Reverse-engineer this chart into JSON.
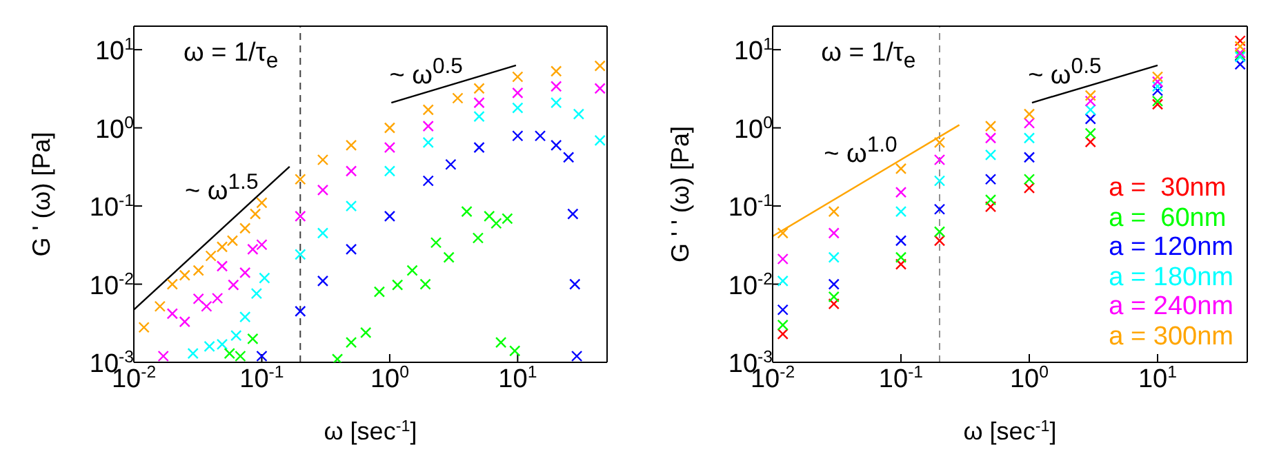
{
  "chart_data": [
    {
      "type": "scatter",
      "xlabel": "ω [sec$^{-1}$]",
      "ylabel": "G ' (ω) [Pa]",
      "log": "xy",
      "marker": "cross",
      "xlim": [
        0.01,
        50
      ],
      "ylim": [
        0.001,
        20
      ],
      "xticks": [
        {
          "value": 0.01,
          "label": "10$^{-2}$"
        },
        {
          "value": 0.1,
          "label": "10$^{-1}$"
        },
        {
          "value": 1,
          "label": "10$^{0}$"
        },
        {
          "value": 10,
          "label": "10$^{1}$"
        }
      ],
      "yticks": [
        {
          "value": 0.001,
          "label": "10$^{-3}$"
        },
        {
          "value": 0.01,
          "label": "10$^{-2}$"
        },
        {
          "value": 0.1,
          "label": "10$^{-1}$"
        },
        {
          "value": 1,
          "label": "10$^{0}$"
        },
        {
          "value": 10,
          "label": "10$^{1}$"
        }
      ],
      "ref_lines": [
        {
          "axis": "x",
          "value": 0.2,
          "color": "#404040",
          "line_style": "dashed"
        }
      ],
      "annotations": [
        "ω = 1/τ$_{e}$",
        "~ ω$^{1.5}$",
        "~ ω$^{0.5}$"
      ],
      "series": [
        {
          "color": "#ffa500",
          "x": [
            0.012,
            0.016,
            0.02,
            0.025,
            0.032,
            0.04,
            0.049,
            0.059,
            0.074,
            0.089,
            0.1,
            0.2,
            0.3,
            0.5,
            1,
            2,
            3.4,
            5,
            10,
            20,
            44
          ],
          "values": [
            0.0028,
            0.0052,
            0.01,
            0.013,
            0.015,
            0.023,
            0.03,
            0.036,
            0.052,
            0.079,
            0.11,
            0.22,
            0.39,
            0.6,
            1.0,
            1.7,
            2.4,
            3.2,
            4.5,
            5.3,
            6.2
          ]
        },
        {
          "color": "#ff00ff",
          "x": [
            0.017,
            0.02,
            0.025,
            0.032,
            0.037,
            0.045,
            0.049,
            0.06,
            0.074,
            0.085,
            0.1,
            0.2,
            0.3,
            0.5,
            1,
            2,
            5,
            10,
            20,
            44
          ],
          "values": [
            0.0012,
            0.0042,
            0.0033,
            0.0065,
            0.0052,
            0.0066,
            0.017,
            0.0098,
            0.014,
            0.028,
            0.032,
            0.074,
            0.16,
            0.28,
            0.56,
            1.05,
            2.1,
            2.8,
            3.4,
            3.2
          ]
        },
        {
          "color": "#00ffff",
          "x": [
            0.029,
            0.039,
            0.049,
            0.063,
            0.074,
            0.091,
            0.105,
            0.2,
            0.3,
            0.5,
            1,
            2,
            5,
            10,
            20,
            30,
            44
          ],
          "values": [
            0.0013,
            0.0016,
            0.0017,
            0.0022,
            0.0038,
            0.0076,
            0.012,
            0.024,
            0.045,
            0.1,
            0.28,
            0.65,
            1.4,
            1.8,
            2.1,
            1.5,
            0.69
          ]
        },
        {
          "color": "#0000ff",
          "x": [
            0.1,
            0.2,
            0.3,
            0.5,
            1,
            2,
            3,
            5,
            10,
            15,
            20,
            25,
            27,
            28,
            29
          ],
          "values": [
            0.0012,
            0.0045,
            0.011,
            0.028,
            0.074,
            0.21,
            0.34,
            0.56,
            0.79,
            0.79,
            0.6,
            0.42,
            0.079,
            0.01,
            0.0012
          ]
        },
        {
          "color": "#00ff00",
          "x": [
            0.056,
            0.068,
            0.085,
            0.39,
            0.5,
            0.65,
            0.83,
            1.15,
            1.5,
            1.9,
            2.3,
            2.9,
            4.0,
            4.9,
            6.0,
            6.8,
            7.4,
            8.3,
            9.5
          ],
          "values": [
            0.0013,
            0.0012,
            0.002,
            0.0011,
            0.0018,
            0.0024,
            0.008,
            0.0098,
            0.015,
            0.01,
            0.034,
            0.022,
            0.085,
            0.039,
            0.074,
            0.06,
            0.0018,
            0.069,
            0.0014
          ]
        },
        {
          "type": "line",
          "marker": "none",
          "color": "#000000",
          "x": [
            0.01,
            0.165
          ],
          "values": [
            0.0047,
            0.32
          ]
        },
        {
          "type": "line",
          "marker": "none",
          "color": "#000000",
          "x": [
            1.03,
            9.7
          ],
          "values": [
            2.1,
            6.3
          ]
        }
      ]
    },
    {
      "type": "scatter",
      "xlabel": "ω [sec$^{-1}$]",
      "ylabel": "G ' ' (ω) [Pa]",
      "log": "xy",
      "marker": "cross",
      "legend": "right",
      "xlim": [
        0.01,
        50
      ],
      "ylim": [
        0.001,
        20
      ],
      "xticks": [
        {
          "value": 0.01,
          "label": "10$^{-2}$"
        },
        {
          "value": 0.1,
          "label": "10$^{-1}$"
        },
        {
          "value": 1,
          "label": "10$^{0}$"
        },
        {
          "value": 10,
          "label": "10$^{1}$"
        }
      ],
      "yticks": [
        {
          "value": 0.001,
          "label": "10$^{-3}$"
        },
        {
          "value": 0.01,
          "label": "10$^{-2}$"
        },
        {
          "value": 0.1,
          "label": "10$^{-1}$"
        },
        {
          "value": 1,
          "label": "10$^{0}$"
        },
        {
          "value": 10,
          "label": "10$^{1}$"
        }
      ],
      "ref_lines": [
        {
          "axis": "x",
          "value": 0.2,
          "color": "#909090",
          "line_style": "dashed"
        }
      ],
      "annotations": [
        "ω = 1/τ$_{e}$",
        "~ ω$^{1.0}$",
        "~ ω$^{0.5}$"
      ],
      "x": [
        0.012,
        0.03,
        0.1,
        0.2,
        0.5,
        1,
        3,
        10,
        44
      ],
      "series": [
        {
          "name": "a =  30nm",
          "color": "#ff0000",
          "values": [
            0.0023,
            0.0056,
            0.018,
            0.036,
            0.098,
            0.17,
            0.66,
            2.0,
            13
          ]
        },
        {
          "name": "a =  60nm",
          "color": "#00ff00",
          "values": [
            0.003,
            0.0069,
            0.022,
            0.047,
            0.12,
            0.22,
            0.85,
            2.2,
            8.5
          ]
        },
        {
          "name": "a = 120nm",
          "color": "#0000ff",
          "values": [
            0.0047,
            0.01,
            0.036,
            0.091,
            0.22,
            0.42,
            1.3,
            3.0,
            6.5
          ]
        },
        {
          "name": "a = 180nm",
          "color": "#00ffff",
          "values": [
            0.011,
            0.022,
            0.085,
            0.21,
            0.45,
            0.74,
            1.7,
            3.4,
            8.1
          ]
        },
        {
          "name": "a = 240nm",
          "color": "#ff00ff",
          "values": [
            0.021,
            0.045,
            0.15,
            0.39,
            0.74,
            1.15,
            2.2,
            3.9,
            9.1
          ]
        },
        {
          "name": "a = 300nm",
          "color": "#ffa500",
          "values": [
            0.045,
            0.085,
            0.3,
            0.65,
            1.05,
            1.5,
            2.6,
            4.5,
            11
          ]
        },
        {
          "type": "line",
          "marker": "none",
          "color": "#ffa500",
          "x": [
            0.01,
            0.285
          ],
          "values": [
            0.041,
            1.09
          ]
        },
        {
          "type": "line",
          "marker": "none",
          "color": "#000000",
          "x": [
            1.05,
            10
          ],
          "values": [
            2.1,
            6.3
          ]
        }
      ]
    }
  ]
}
